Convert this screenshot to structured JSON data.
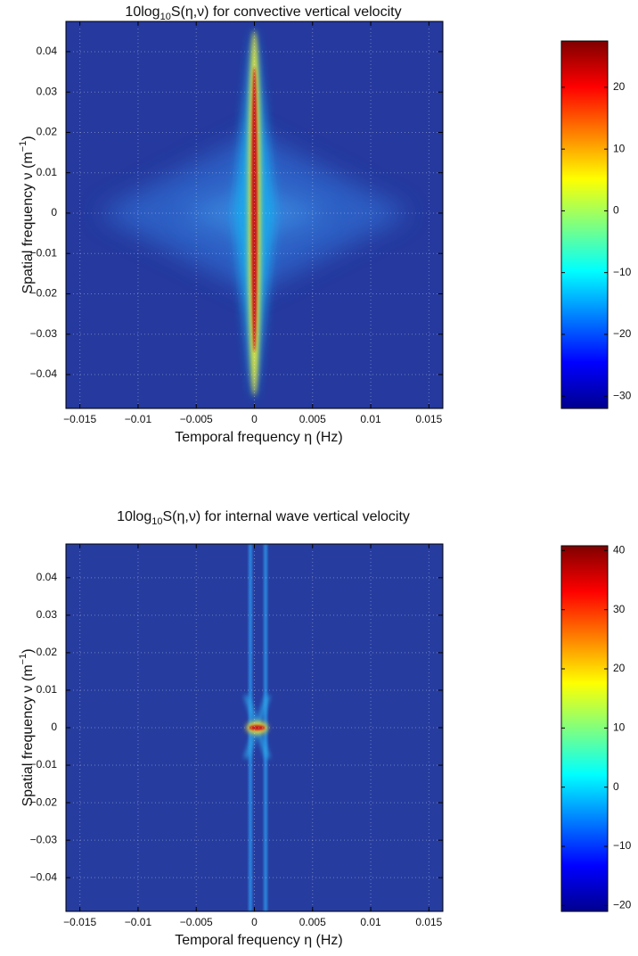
{
  "chart_data": [
    {
      "type": "heatmap",
      "title": [
        "10log",
        "10",
        "S(η,ν) for convective vertical velocity"
      ],
      "x_label": "Temporal frequency η (Hz)",
      "y_label": [
        "Spatial frequency ν (m",
        "−1",
        ")"
      ],
      "xlim": [
        -0.0162,
        0.0162
      ],
      "xticks": [
        {
          "value": -0.015,
          "label": "−0.015"
        },
        {
          "value": -0.01,
          "label": "−0.01"
        },
        {
          "value": -0.005,
          "label": "−0.005"
        },
        0,
        0.005,
        0.01,
        0.015
      ],
      "ylim": [
        -0.0484,
        0.0475
      ],
      "yticks": [
        0.04,
        0.03,
        0.02,
        0.01,
        0,
        {
          "value": -0.01,
          "label": "−0.01"
        },
        {
          "value": -0.02,
          "label": "−0.02"
        },
        {
          "value": -0.03,
          "label": "−0.03"
        },
        {
          "value": -0.04,
          "label": "−0.04"
        }
      ],
      "grid": true,
      "colormap": "jet",
      "clim": [
        -32,
        27.5
      ],
      "cticks": [
        20,
        10,
        0,
        {
          "value": -10,
          "label": "−10"
        },
        {
          "value": -20,
          "label": "−20"
        },
        {
          "value": -30,
          "label": "−30"
        }
      ]
    },
    {
      "type": "heatmap",
      "title": [
        "10log",
        "10",
        "S(η,ν) for internal wave vertical velocity"
      ],
      "x_label": "Temporal frequency η (Hz)",
      "y_label": [
        "Spatial frequency ν (m",
        "−1",
        ")"
      ],
      "xlim": [
        -0.0162,
        0.0162
      ],
      "xticks": [
        {
          "value": -0.015,
          "label": "−0.015"
        },
        {
          "value": -0.01,
          "label": "−0.01"
        },
        {
          "value": -0.005,
          "label": "−0.005"
        },
        0,
        0.005,
        0.01,
        0.015
      ],
      "ylim": [
        -0.049,
        0.049
      ],
      "yticks": [
        0.04,
        0.03,
        0.02,
        0.01,
        0,
        {
          "value": -0.01,
          "label": "−0.01"
        },
        {
          "value": -0.02,
          "label": "−0.02"
        },
        {
          "value": -0.03,
          "label": "−0.03"
        },
        {
          "value": -0.04,
          "label": "−0.04"
        }
      ],
      "grid": true,
      "colormap": "jet",
      "clim": [
        -21,
        40.8
      ],
      "cticks": [
        40,
        30,
        20,
        10,
        0,
        {
          "value": -10,
          "label": "−10"
        },
        {
          "value": -20,
          "label": "−20"
        }
      ]
    }
  ]
}
